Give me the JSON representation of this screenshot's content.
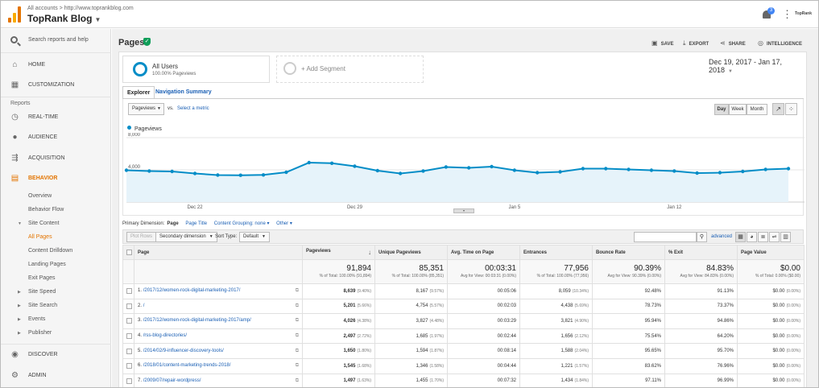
{
  "header": {
    "breadcrumb": "All accounts > http://www.toprankblog.com",
    "account": "TopRank Blog",
    "notification_count": "3",
    "brand": "TopRank"
  },
  "sidebar": {
    "search_label": "Search reports and help",
    "home": "HOME",
    "customization": "CUSTOMIZATION",
    "reports_label": "Reports",
    "realtime": "REAL-TIME",
    "audience": "AUDIENCE",
    "acquisition": "ACQUISITION",
    "behavior": "BEHAVIOR",
    "behavior_items": [
      "Overview",
      "Behavior Flow",
      "Site Content",
      "All Pages",
      "Content Drilldown",
      "Landing Pages",
      "Exit Pages",
      "Site Speed",
      "Site Search",
      "Events",
      "Publisher"
    ],
    "discover": "DISCOVER",
    "admin": "ADMIN"
  },
  "page": {
    "title": "Pages",
    "save": "SAVE",
    "export": "EXPORT",
    "share": "SHARE",
    "intelligence": "INTELLIGENCE",
    "intelligence_count": "1"
  },
  "segments": {
    "all_users": "All Users",
    "all_users_sub": "100.00% Pageviews",
    "add_segment": "+ Add Segment"
  },
  "date_range": "Dec 19, 2017 - Jan 17, 2018",
  "tabs": [
    "Explorer",
    "Navigation Summary"
  ],
  "explorer": {
    "metric": "Pageviews",
    "vs": "vs.",
    "select_metric": "Select a metric",
    "grains": [
      "Day",
      "Week",
      "Month"
    ],
    "legend": "Pageviews"
  },
  "chart_data": {
    "type": "line",
    "series": [
      {
        "name": "Pageviews",
        "values": [
          3950,
          3850,
          3800,
          3550,
          3350,
          3330,
          3370,
          3700,
          4900,
          4820,
          4450,
          3900,
          3550,
          3850,
          4350,
          4250,
          4400,
          3950,
          3650,
          3750,
          4150,
          4150,
          4050,
          3950,
          3850,
          3600,
          3650,
          3800,
          4050,
          4150
        ]
      }
    ],
    "xticks": [
      "Dec 22",
      "Dec 29",
      "Jan 5",
      "Jan 12"
    ],
    "xtick_index": [
      3,
      10,
      17,
      24
    ],
    "yticks": [
      "8,000",
      "4,000"
    ],
    "ylim": [
      0,
      8000
    ]
  },
  "primary_dimension": {
    "label": "Primary Dimension:",
    "selected": "Page",
    "options": [
      "Page Title",
      "Content Grouping: none",
      "Other"
    ]
  },
  "table_toolbar": {
    "plot_rows": "Plot Rows",
    "secondary_dimension": "Secondary dimension",
    "sort_type_label": "Sort Type:",
    "sort_type": "Default",
    "advanced": "advanced"
  },
  "table": {
    "columns": [
      "Page",
      "Pageviews",
      "Unique Pageviews",
      "Avg. Time on Page",
      "Entrances",
      "Bounce Rate",
      "% Exit",
      "Page Value"
    ],
    "totals": {
      "pageviews": "91,894",
      "pageviews_sub": "% of Total: 100.00% (91,894)",
      "unique": "85,351",
      "unique_sub": "% of Total: 100.00% (85,351)",
      "avg_time": "00:03:31",
      "avg_time_sub": "Avg for View: 00:03:31 (0.00%)",
      "entrances": "77,956",
      "entrances_sub": "% of Total: 100.00% (77,956)",
      "bounce": "90.39%",
      "bounce_sub": "Avg for View: 90.39% (0.00%)",
      "exit": "84.83%",
      "exit_sub": "Avg for View: 84.83% (0.00%)",
      "value": "$0.00",
      "value_sub": "% of Total: 0.00% ($0.00)"
    },
    "rows": [
      {
        "n": "1.",
        "page": "/2017/12/women-rock-digital-marketing-2017/",
        "pv": "8,639",
        "pv_pct": "(9.40%)",
        "upv": "8,167",
        "upv_pct": "(9.57%)",
        "time": "00:05:06",
        "ent": "8,059",
        "ent_pct": "(10.34%)",
        "bounce": "92.48%",
        "exit": "91.13%",
        "val": "$0.00",
        "val_pct": "(0.00%)"
      },
      {
        "n": "2.",
        "page": "/",
        "pv": "5,201",
        "pv_pct": "(5.66%)",
        "upv": "4,754",
        "upv_pct": "(5.57%)",
        "time": "00:02:03",
        "ent": "4,438",
        "ent_pct": "(5.69%)",
        "bounce": "78.73%",
        "exit": "73.37%",
        "val": "$0.00",
        "val_pct": "(0.00%)"
      },
      {
        "n": "3.",
        "page": "/2017/12/women-rock-digital-marketing-2017/amp/",
        "pv": "4,026",
        "pv_pct": "(4.38%)",
        "upv": "3,827",
        "upv_pct": "(4.48%)",
        "time": "00:03:29",
        "ent": "3,821",
        "ent_pct": "(4.90%)",
        "bounce": "95.94%",
        "exit": "94.86%",
        "val": "$0.00",
        "val_pct": "(0.00%)"
      },
      {
        "n": "4.",
        "page": "/rss-blog-directories/",
        "pv": "2,497",
        "pv_pct": "(2.72%)",
        "upv": "1,685",
        "upv_pct": "(1.97%)",
        "time": "00:02:44",
        "ent": "1,656",
        "ent_pct": "(2.12%)",
        "bounce": "75.54%",
        "exit": "64.20%",
        "val": "$0.00",
        "val_pct": "(0.00%)"
      },
      {
        "n": "5.",
        "page": "/2014/02/9-influencer-discovery-tools/",
        "pv": "1,650",
        "pv_pct": "(1.80%)",
        "upv": "1,594",
        "upv_pct": "(1.87%)",
        "time": "00:08:14",
        "ent": "1,588",
        "ent_pct": "(2.04%)",
        "bounce": "95.65%",
        "exit": "95.70%",
        "val": "$0.00",
        "val_pct": "(0.00%)"
      },
      {
        "n": "6.",
        "page": "/2018/01/content-marketing-trends-2018/",
        "pv": "1,545",
        "pv_pct": "(1.68%)",
        "upv": "1,346",
        "upv_pct": "(1.58%)",
        "time": "00:04:44",
        "ent": "1,221",
        "ent_pct": "(1.57%)",
        "bounce": "83.62%",
        "exit": "76.96%",
        "val": "$0.00",
        "val_pct": "(0.00%)"
      },
      {
        "n": "7.",
        "page": "/2009/07/repair-wordpress/",
        "pv": "1,497",
        "pv_pct": "(1.63%)",
        "upv": "1,455",
        "upv_pct": "(1.70%)",
        "time": "00:07:32",
        "ent": "1,434",
        "ent_pct": "(1.84%)",
        "bounce": "97.11%",
        "exit": "96.99%",
        "val": "$0.00",
        "val_pct": "(0.00%)"
      }
    ]
  }
}
